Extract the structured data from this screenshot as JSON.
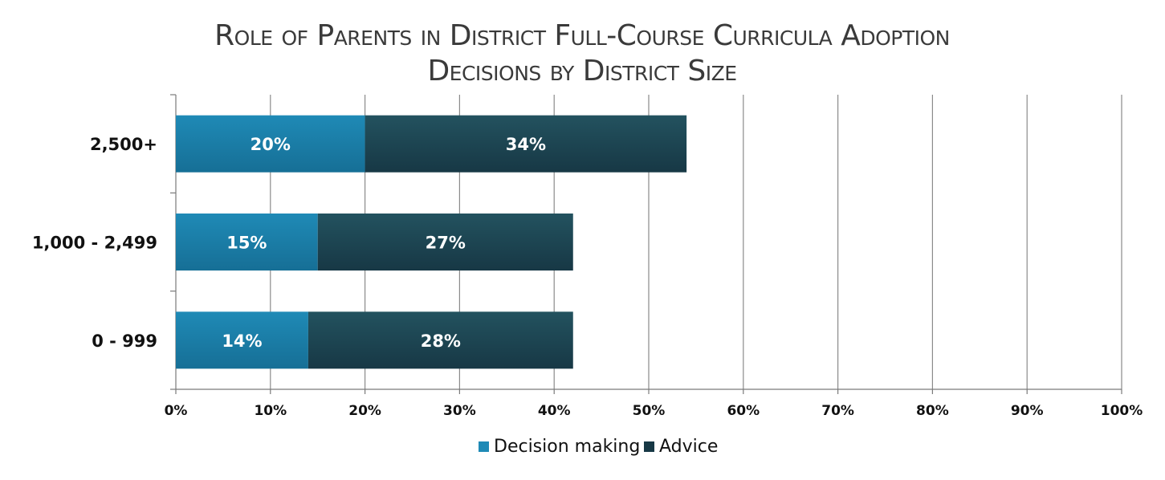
{
  "colors": {
    "decision_making_top": "#1f8ab6",
    "decision_making_bottom": "#166f96",
    "advice_top": "#23525f",
    "advice_bottom": "#173845",
    "grid": "#8a8a8a",
    "axis": "#7a7a7a"
  },
  "chart_data": {
    "type": "bar",
    "orientation": "horizontal",
    "stacked": true,
    "title": "Role of Parents in District Full-Course Curricula Adoption Decisions by District Size",
    "title_lines": [
      "Role of Parents in District Full-Course Curricula Adoption",
      "Decisions by District Size"
    ],
    "categories": [
      "2,500+",
      "1,000 - 2,499",
      "0 - 999"
    ],
    "series": [
      {
        "name": "Decision making",
        "values": [
          20,
          15,
          14
        ],
        "labels": [
          "20%",
          "15%",
          "14%"
        ]
      },
      {
        "name": "Advice",
        "values": [
          34,
          27,
          28
        ],
        "labels": [
          "34%",
          "27%",
          "28%"
        ]
      }
    ],
    "xlim": [
      0,
      100
    ],
    "xticks": [
      "0%",
      "10%",
      "20%",
      "30%",
      "40%",
      "50%",
      "60%",
      "70%",
      "80%",
      "90%",
      "100%"
    ],
    "xlabel": "",
    "ylabel": "",
    "grid": true,
    "legend_position": "bottom"
  }
}
